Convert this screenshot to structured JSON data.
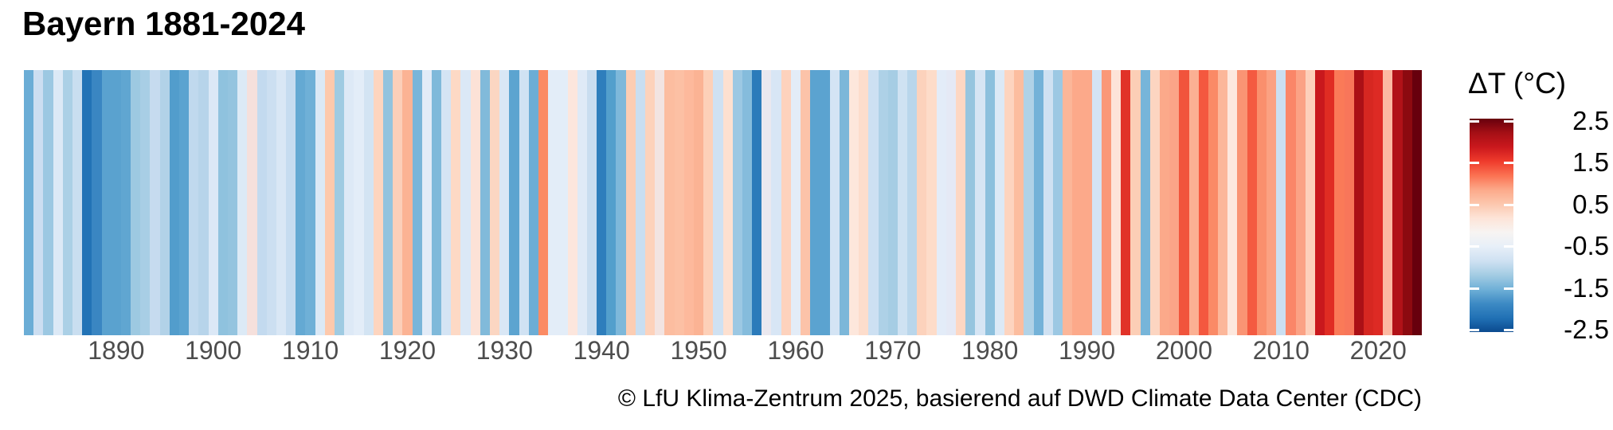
{
  "title": "Bayern 1881-2024",
  "caption": "© LfU Klima-Zentrum 2025, basierend auf DWD Climate Data Center (CDC)",
  "legend": {
    "title": "ΔT (°C)",
    "ticks": [
      2.5,
      1.5,
      0.5,
      -0.5,
      -1.5,
      -2.5
    ],
    "range": [
      -2.5,
      2.5
    ],
    "gradient_top_to_bottom": [
      "#67000d",
      "#a50f15",
      "#cb181d",
      "#ef3b2c",
      "#fb7252",
      "#fca98a",
      "#fcc7ae",
      "#fde4d8",
      "#f7f4f2",
      "#e7eff8",
      "#cfe1f2",
      "#a3cce3",
      "#6fb0d7",
      "#3d8ac4",
      "#2171b5",
      "#0b4a8f"
    ]
  },
  "chart_data": {
    "type": "bar",
    "subtype": "warming-stripes",
    "title": "Bayern 1881-2024",
    "xlabel": "",
    "ylabel": "ΔT (°C)",
    "ylim": [
      -2.5,
      2.5
    ],
    "x_ticks": [
      1890,
      1900,
      1910,
      1920,
      1930,
      1940,
      1950,
      1960,
      1970,
      1980,
      1990,
      2000,
      2010,
      2020
    ],
    "x_start_year": 1881,
    "x_end_year": 2024,
    "years": [
      1881,
      1882,
      1883,
      1884,
      1885,
      1886,
      1887,
      1888,
      1889,
      1890,
      1891,
      1892,
      1893,
      1894,
      1895,
      1896,
      1897,
      1898,
      1899,
      1900,
      1901,
      1902,
      1903,
      1904,
      1905,
      1906,
      1907,
      1908,
      1909,
      1910,
      1911,
      1912,
      1913,
      1914,
      1915,
      1916,
      1917,
      1918,
      1919,
      1920,
      1921,
      1922,
      1923,
      1924,
      1925,
      1926,
      1927,
      1928,
      1929,
      1930,
      1931,
      1932,
      1933,
      1934,
      1935,
      1936,
      1937,
      1938,
      1939,
      1940,
      1941,
      1942,
      1943,
      1944,
      1945,
      1946,
      1947,
      1948,
      1949,
      1950,
      1951,
      1952,
      1953,
      1954,
      1955,
      1956,
      1957,
      1958,
      1959,
      1960,
      1961,
      1962,
      1963,
      1964,
      1965,
      1966,
      1967,
      1968,
      1969,
      1970,
      1971,
      1972,
      1973,
      1974,
      1975,
      1976,
      1977,
      1978,
      1979,
      1980,
      1981,
      1982,
      1983,
      1984,
      1985,
      1986,
      1987,
      1988,
      1989,
      1990,
      1991,
      1992,
      1993,
      1994,
      1995,
      1996,
      1997,
      1998,
      1999,
      2000,
      2001,
      2002,
      2003,
      2004,
      2005,
      2006,
      2007,
      2008,
      2009,
      2010,
      2011,
      2012,
      2013,
      2014,
      2015,
      2016,
      2017,
      2018,
      2019,
      2020,
      2021,
      2022,
      2023,
      2024
    ],
    "values": [
      -1.05,
      -0.4,
      -0.7,
      -0.25,
      -0.6,
      -0.45,
      -1.6,
      -1.4,
      -1.2,
      -1.2,
      -1.15,
      -0.7,
      -0.65,
      -0.45,
      -0.55,
      -1.25,
      -1.2,
      -0.5,
      -0.55,
      -0.25,
      -0.8,
      -0.8,
      -0.25,
      0.15,
      -0.45,
      -0.4,
      -0.3,
      -0.45,
      -1.1,
      -1.0,
      -0.25,
      0.55,
      -0.7,
      -0.25,
      -0.15,
      -0.35,
      0.4,
      -0.8,
      0.5,
      0.8,
      -0.95,
      -0.15,
      -0.9,
      -0.35,
      0.35,
      -0.25,
      0.2,
      -0.9,
      0.4,
      -0.3,
      -1.2,
      -0.4,
      -1.05,
      1.2,
      -0.15,
      -0.15,
      0.15,
      -0.2,
      -0.45,
      -1.55,
      -1.25,
      -0.9,
      0.5,
      -0.45,
      0.45,
      0.1,
      0.7,
      0.65,
      0.75,
      0.8,
      0.45,
      -0.4,
      0.25,
      -0.7,
      -0.85,
      -1.55,
      0.0,
      -0.3,
      0.45,
      -0.15,
      0.6,
      -1.2,
      -1.2,
      -0.35,
      -0.95,
      0.15,
      0.3,
      -0.4,
      -0.6,
      -0.65,
      -0.4,
      -0.55,
      0.45,
      0.3,
      -0.15,
      -0.1,
      0.35,
      -0.75,
      -0.3,
      -0.85,
      -0.25,
      0.4,
      0.7,
      -0.6,
      -1.0,
      -0.4,
      -0.7,
      0.75,
      0.9,
      0.9,
      -0.35,
      1.1,
      0.2,
      1.8,
      0.5,
      -0.95,
      0.4,
      0.9,
      0.95,
      1.65,
      0.85,
      1.6,
      1.2,
      0.75,
      0.1,
      1.1,
      1.6,
      1.15,
      0.95,
      -0.4,
      1.25,
      0.95,
      0.45,
      2.0,
      1.85,
      1.35,
      1.35,
      2.2,
      1.9,
      1.85,
      0.7,
      2.15,
      2.35,
      2.55
    ],
    "colors": [
      "#6badd6",
      "#ccdef1",
      "#9cc8e2",
      "#dce9f6",
      "#abd0e6",
      "#c9def0",
      "#2273b6",
      "#3a86c2",
      "#5aa2cf",
      "#5aa2cf",
      "#60a6d1",
      "#9dc9e1",
      "#a8cee5",
      "#c6dbef",
      "#b2d2e8",
      "#529dcc",
      "#5ba3d0",
      "#c0d9ee",
      "#b7d4ea",
      "#dbe8f6",
      "#8fc2de",
      "#94c4df",
      "#dceaf6",
      "#f5e0dc",
      "#c3daef",
      "#ccdff1",
      "#d9e7f5",
      "#c6dcf0",
      "#64a9d3",
      "#6fb0d7",
      "#dbe9f6",
      "#fdc9ac",
      "#9fcbe2",
      "#dde9f6",
      "#e3edf8",
      "#d3e4f3",
      "#fdd5bf",
      "#92c3de",
      "#fbcfb9",
      "#fbb394",
      "#79b5d9",
      "#e2ebf7",
      "#7fb9da",
      "#d4e4f4",
      "#fdd9c5",
      "#dbe8f6",
      "#fce2d7",
      "#81bada",
      "#fbd6c2",
      "#d9e7f5",
      "#5ca4d0",
      "#d0e2f3",
      "#6cadd5",
      "#fb8b64",
      "#e3edf8",
      "#e3edf8",
      "#fce6dd",
      "#dfeaf7",
      "#c9ddf0",
      "#2e7ebc",
      "#539fcc",
      "#7eb8da",
      "#fccdb3",
      "#c9def1",
      "#fdd2bb",
      "#f2e4e2",
      "#fcbda0",
      "#fcc0a4",
      "#fdb99c",
      "#fbb394",
      "#fdd0b8",
      "#cfe1f2",
      "#fde0d0",
      "#9cc8e3",
      "#85bcdc",
      "#2b7bba",
      "#eae8ef",
      "#d8e6f5",
      "#fdd2bd",
      "#e3ecf7",
      "#fcc3a9",
      "#5ba3d0",
      "#5ba3d0",
      "#d4e4f4",
      "#7cb7d9",
      "#fde7dc",
      "#fdddcc",
      "#cde0f2",
      "#aed1e7",
      "#a6cde4",
      "#cfe2f2",
      "#b9d6eb",
      "#fcd2bc",
      "#fddcc9",
      "#e3ecf8",
      "#e5e9f5",
      "#fdd7c3",
      "#96c5df",
      "#d6e5f4",
      "#8cc0dd",
      "#dce9f6",
      "#fdd4bf",
      "#fcbd9f",
      "#b0d2e7",
      "#74b2d8",
      "#cfe1f2",
      "#9cc8e3",
      "#fbb699",
      "#fca98a",
      "#fca98a",
      "#d4e3f4",
      "#fa9878",
      "#fde3d8",
      "#e13228",
      "#fcceb6",
      "#77b5d9",
      "#fcd5c1",
      "#fba98a",
      "#fba488",
      "#f1543c",
      "#fbb093",
      "#f4583f",
      "#fa8a66",
      "#fcb79a",
      "#fde8de",
      "#fa9474",
      "#f45a41",
      "#fa8f6d",
      "#fba182",
      "#cbdff1",
      "#fa8668",
      "#fba285",
      "#fdd0bb",
      "#c9181d",
      "#e02c23",
      "#fa7a58",
      "#f8765a",
      "#ab1016",
      "#d62721",
      "#dd2a24",
      "#fcb9a2",
      "#b11218",
      "#8c0a10",
      "#67000d"
    ]
  }
}
